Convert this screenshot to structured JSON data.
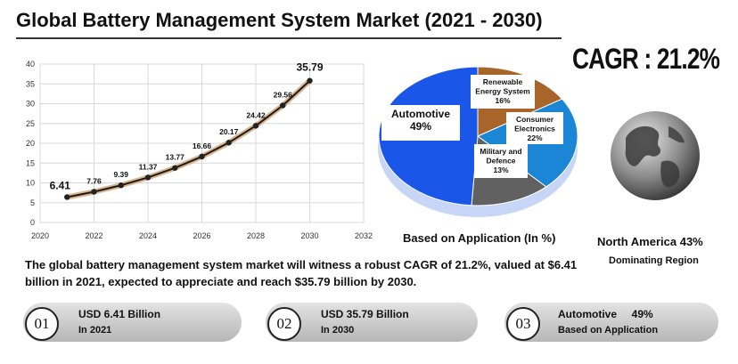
{
  "title": "Global Battery Management System Market  (2021 - 2030)",
  "cagr_label": "CAGR : 21.2%",
  "chart_data": [
    {
      "type": "line",
      "x": [
        2021,
        2022,
        2023,
        2024,
        2025,
        2026,
        2027,
        2028,
        2029,
        2030
      ],
      "values": [
        6.41,
        7.76,
        9.39,
        11.37,
        13.77,
        16.66,
        20.17,
        24.42,
        29.56,
        35.79
      ],
      "data_labels": [
        "6.41",
        "7.76",
        "9.39",
        "11.37",
        "13.77",
        "16.66",
        "20.17",
        "24.42",
        "29.56",
        "35.79"
      ],
      "xlim": [
        2020,
        2032
      ],
      "ylim": [
        0,
        40
      ],
      "x_ticks": [
        "2020",
        "2022",
        "2024",
        "2026",
        "2028",
        "2030",
        "2032"
      ],
      "y_ticks": [
        "0",
        "5",
        "10",
        "15",
        "20",
        "25",
        "30",
        "35",
        "40"
      ],
      "grid": true,
      "title": "",
      "xlabel": "",
      "ylabel": ""
    },
    {
      "type": "pie",
      "title": "Based on Application  (In %)",
      "slices": [
        {
          "label": "Automotive",
          "value": 49,
          "value_label": "49%",
          "color": "#1a56e8"
        },
        {
          "label": "Renewable Energy System",
          "value": 16,
          "value_label": "16%",
          "color": "#a8652a"
        },
        {
          "label": "Consumer Electronics",
          "value": 22,
          "value_label": "22%",
          "color": "#1b86d6"
        },
        {
          "label": "Military and Defence",
          "value": 13,
          "value_label": "13%",
          "color": "#616161"
        }
      ]
    }
  ],
  "pie_labels": {
    "automotive": [
      "Automotive",
      "49%"
    ],
    "renewable": [
      "Renewable",
      "Energy System",
      "16%"
    ],
    "consumer": [
      "Consumer",
      "Electronics",
      "22%"
    ],
    "military": [
      "Military and",
      "Defence",
      "13%"
    ]
  },
  "region": {
    "name": "North America  43%",
    "subtitle": "Dominating Region"
  },
  "summary": "The global battery management system market will witness a robust CAGR of 21.2%, valued at $6.41 billion in 2021, expected to appreciate and reach $35.79 billion by 2030.",
  "highlights": [
    {
      "number": "01",
      "line1": "USD 6.41 Billion",
      "line2": "In 2021"
    },
    {
      "number": "02",
      "line1": "USD 35.79 Billion",
      "line2": "In 2030"
    },
    {
      "number": "03",
      "line1": "Automotive     49%",
      "line2": "Based on Application"
    }
  ]
}
